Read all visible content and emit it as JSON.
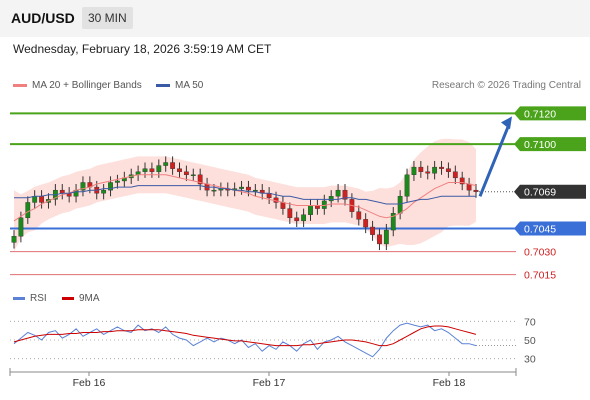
{
  "header": {
    "symbol": "AUD/USD",
    "timeframe": "30 MIN"
  },
  "datetime_text": "Wednesday, February 18, 2026 3:59:19 AM CET",
  "legend": {
    "ma20_label": "MA 20 + Bollinger Bands",
    "ma50_label": "MA 50",
    "copyright": "Research © 2026 Trading Central",
    "rsi_label": "RSI",
    "rsi_ma_label": "9MA"
  },
  "colors": {
    "up": "#1a8a1a",
    "down": "#d02020",
    "ma20": "#f08080",
    "ma50": "#3b5aa5",
    "bb_fill": "#fde0dc",
    "resistance": "#4aa31a",
    "support": "#3a6fd8",
    "weak_support": "#e07070",
    "arrow": "#2e63b8",
    "rsi": "#5b82d6",
    "rsi_ma": "#cc0000"
  },
  "chart_data": [
    {
      "type": "candlestick",
      "x_ticks": [
        "Feb 16",
        "Feb 17",
        "Feb 18"
      ],
      "ylim": [
        0.7005,
        0.713
      ],
      "levels": [
        {
          "value": 0.712,
          "label": "0.7120",
          "kind": "resistance"
        },
        {
          "value": 0.71,
          "label": "0.7100",
          "kind": "resistance"
        },
        {
          "value": 0.7069,
          "label": "0.7069",
          "kind": "last"
        },
        {
          "value": 0.7045,
          "label": "0.7045",
          "kind": "support"
        },
        {
          "value": 0.703,
          "label": "0.7030",
          "kind": "weak_support"
        },
        {
          "value": 0.7015,
          "label": "0.7015",
          "kind": "weak_support"
        }
      ],
      "projection": {
        "from": 0.7066,
        "to": 0.7118
      },
      "close": [
        0.704,
        0.7052,
        0.7062,
        0.7066,
        0.7062,
        0.7064,
        0.707,
        0.7068,
        0.7066,
        0.707,
        0.7075,
        0.7072,
        0.7068,
        0.707,
        0.7075,
        0.7076,
        0.7078,
        0.708,
        0.7082,
        0.7084,
        0.7082,
        0.7086,
        0.7088,
        0.7084,
        0.7082,
        0.708,
        0.708,
        0.7074,
        0.707,
        0.707,
        0.7071,
        0.707,
        0.7071,
        0.7072,
        0.707,
        0.707,
        0.7068,
        0.7065,
        0.7062,
        0.7058,
        0.7052,
        0.705,
        0.7054,
        0.706,
        0.7058,
        0.7063,
        0.7066,
        0.707,
        0.7064,
        0.7056,
        0.7051,
        0.7046,
        0.7041,
        0.7035,
        0.7044,
        0.7055,
        0.7066,
        0.708,
        0.7085,
        0.7082,
        0.7081,
        0.7085,
        0.7084,
        0.7082,
        0.7078,
        0.7074,
        0.707,
        0.7069
      ],
      "ma20": [
        0.705,
        0.7053,
        0.7056,
        0.7058,
        0.7061,
        0.7063,
        0.7065,
        0.7067,
        0.7068,
        0.707,
        0.7071,
        0.7072,
        0.7074,
        0.7075,
        0.7076,
        0.7077,
        0.7078,
        0.7079,
        0.708,
        0.708,
        0.708,
        0.708,
        0.708,
        0.7079,
        0.7078,
        0.7077,
        0.7076,
        0.7075,
        0.7074,
        0.7073,
        0.7072,
        0.7071,
        0.707,
        0.7069,
        0.7068,
        0.7066,
        0.7065,
        0.7064,
        0.7063,
        0.7062,
        0.7061,
        0.706,
        0.706,
        0.706,
        0.706,
        0.706,
        0.7061,
        0.7061,
        0.7061,
        0.706,
        0.7059,
        0.7057,
        0.7055,
        0.7053,
        0.7052,
        0.7053,
        0.7055,
        0.7058,
        0.7062,
        0.7065,
        0.7068,
        0.7071,
        0.7073,
        0.7075,
        0.7075,
        0.7075,
        0.7074,
        0.7073
      ],
      "ma50": [
        0.7065,
        0.7065,
        0.7065,
        0.7066,
        0.7066,
        0.7067,
        0.7067,
        0.7068,
        0.7068,
        0.7069,
        0.7069,
        0.707,
        0.707,
        0.7071,
        0.7071,
        0.7072,
        0.7072,
        0.7072,
        0.7073,
        0.7073,
        0.7073,
        0.7073,
        0.7073,
        0.7073,
        0.7073,
        0.7073,
        0.7073,
        0.7073,
        0.7072,
        0.7072,
        0.7071,
        0.7071,
        0.707,
        0.707,
        0.7069,
        0.7069,
        0.7068,
        0.7068,
        0.7067,
        0.7066,
        0.7066,
        0.7065,
        0.7064,
        0.7064,
        0.7064,
        0.7064,
        0.7064,
        0.7064,
        0.7065,
        0.7065,
        0.7064,
        0.7064,
        0.7063,
        0.7062,
        0.7061,
        0.7061,
        0.7061,
        0.7062,
        0.7063,
        0.7064,
        0.7064,
        0.7065,
        0.7066,
        0.7066,
        0.7066,
        0.7066,
        0.7066,
        0.7066
      ]
    },
    {
      "type": "line",
      "name": "RSI",
      "ylim": [
        20,
        80
      ],
      "y_ticks": [
        70,
        50,
        30
      ],
      "rsi": [
        46,
        52,
        58,
        55,
        50,
        58,
        60,
        52,
        56,
        62,
        54,
        58,
        62,
        56,
        60,
        64,
        60,
        58,
        66,
        60,
        62,
        58,
        64,
        56,
        52,
        50,
        44,
        48,
        52,
        48,
        52,
        50,
        46,
        50,
        42,
        46,
        38,
        44,
        40,
        48,
        44,
        38,
        46,
        50,
        40,
        48,
        50,
        54,
        48,
        44,
        40,
        36,
        32,
        40,
        52,
        60,
        66,
        68,
        66,
        64,
        66,
        60,
        62,
        58,
        52,
        46,
        46,
        44
      ],
      "rsi_ma": [
        48,
        50,
        52,
        54,
        55,
        56,
        56,
        56,
        57,
        57,
        58,
        58,
        58,
        59,
        59,
        60,
        60,
        60,
        61,
        61,
        61,
        61,
        60,
        59,
        58,
        57,
        55,
        54,
        53,
        52,
        51,
        50,
        49,
        49,
        48,
        47,
        46,
        45,
        44,
        44,
        44,
        44,
        45,
        45,
        46,
        47,
        48,
        49,
        50,
        50,
        49,
        48,
        46,
        44,
        44,
        46,
        50,
        54,
        58,
        62,
        64,
        65,
        65,
        64,
        62,
        60,
        58,
        56
      ]
    }
  ]
}
